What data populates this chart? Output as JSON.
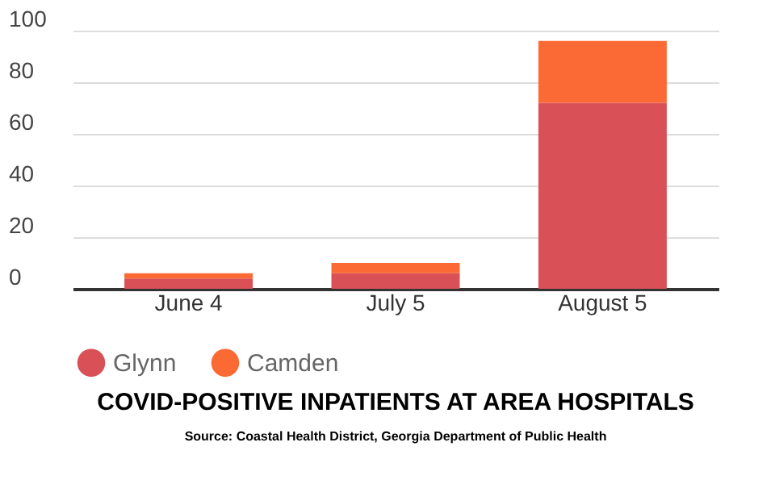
{
  "chart_data": {
    "type": "bar",
    "title": "COVID-POSITIVE INPATIENTS AT AREA HOSPITALS",
    "categories": [
      "June 4",
      "July 5",
      "August 5"
    ],
    "series": [
      {
        "name": "Glynn",
        "color": "#d95056",
        "values": [
          4,
          6,
          72
        ]
      },
      {
        "name": "Camden",
        "color": "#fb6a35",
        "values": [
          2,
          4,
          24
        ]
      }
    ],
    "stacked": true,
    "ylim": [
      0,
      100
    ],
    "yticks": [
      0,
      20,
      40,
      60,
      80,
      100
    ],
    "grid": "y",
    "legend": "bottom",
    "annotations": [
      "Source: Coastal Health District, Georgia Department of Public Health"
    ]
  }
}
